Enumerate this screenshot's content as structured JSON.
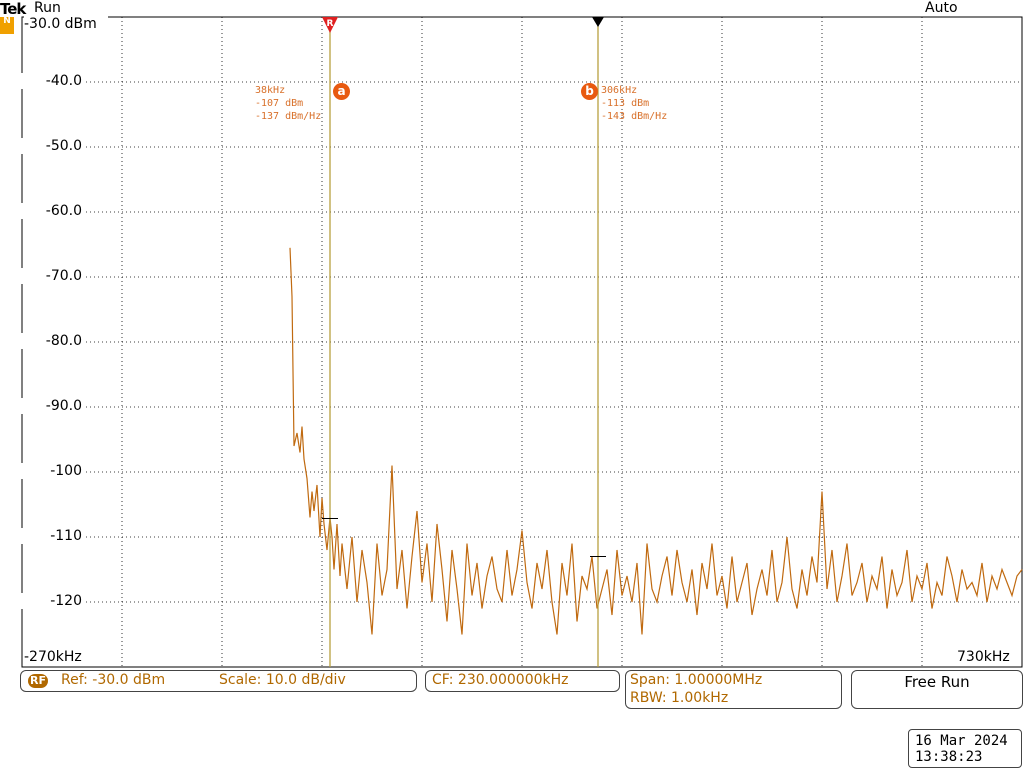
{
  "header": {
    "brand": "Tek",
    "run_state": "Run",
    "trigger_mode": "Auto",
    "channel_badge": "N"
  },
  "y_axis": {
    "labels": [
      "-30.0 dBm",
      "-40.0",
      "-50.0",
      "-60.0",
      "-70.0",
      "-80.0",
      "-90.0",
      "-100",
      "-110",
      "-120"
    ]
  },
  "x_axis": {
    "start": "-270kHz",
    "end": "730kHz"
  },
  "markers": {
    "a": {
      "label": "a",
      "flag": "R",
      "freq": "38kHz",
      "power": "-107 dBm",
      "density": "-137 dBm/Hz"
    },
    "b": {
      "label": "b",
      "freq": "306kHz",
      "power": "-113 dBm",
      "density": "-143 dBm/Hz"
    }
  },
  "status_bar": {
    "rf_badge": "RF",
    "ref": "Ref: -30.0 dBm",
    "scale": "Scale: 10.0 dB/div",
    "cf": "CF:  230.000000kHz",
    "span": "Span:    1.00000MHz",
    "rbw": "RBW:     1.00kHz",
    "mode": "Free Run"
  },
  "datetime": {
    "date": "16 Mar  2024",
    "time": "13:38:23"
  },
  "colors": {
    "trace": "#c06a10",
    "marker_line": "#b8a040",
    "marker_text": "#d8702a",
    "grid": "#000000"
  },
  "chart_data": {
    "type": "line",
    "xlabel": "",
    "ylabel": "",
    "x_unit": "kHz",
    "y_unit": "dBm",
    "xlim": [
      -270,
      730
    ],
    "ylim": [
      -125,
      -30
    ],
    "grid": true,
    "series": [
      {
        "x": [
          -2,
          0,
          2,
          5,
          8,
          10,
          12,
          15,
          18,
          20,
          22,
          25,
          28,
          30,
          32,
          35,
          38,
          40,
          42,
          45,
          48,
          50,
          55,
          60,
          65,
          70,
          75,
          80,
          85,
          90,
          95,
          100,
          105,
          110,
          115,
          120,
          125,
          130,
          135,
          140,
          145,
          150,
          155,
          160,
          165,
          170,
          175,
          180,
          185,
          190,
          195,
          200,
          205,
          210,
          215,
          220,
          225,
          230,
          235,
          240,
          245,
          250,
          255,
          260,
          265,
          270,
          275,
          280,
          285,
          290,
          295,
          300,
          305,
          310,
          315,
          320,
          325,
          330,
          335,
          340,
          345,
          350,
          355,
          360,
          365,
          370,
          375,
          380,
          385,
          390,
          395,
          400,
          405,
          410,
          415,
          420,
          425,
          430,
          435,
          440,
          445,
          450,
          455,
          460,
          465,
          470,
          475,
          480,
          485,
          490,
          495,
          500,
          505,
          510,
          515,
          520,
          525,
          530,
          535,
          540,
          545,
          550,
          555,
          560,
          565,
          570,
          575,
          580,
          585,
          590,
          595,
          600,
          605,
          610,
          615,
          620,
          625,
          630,
          635,
          640,
          645,
          650,
          655,
          660,
          665,
          670,
          675,
          680,
          685,
          690,
          695,
          700,
          705,
          710,
          715,
          720,
          725,
          730
        ],
        "y": [
          -65.5,
          -73,
          -96,
          -94,
          -97,
          -93,
          -98,
          -101,
          -107,
          -103,
          -106,
          -102,
          -110,
          -104,
          -108,
          -112,
          -107,
          -110,
          -115,
          -108,
          -116,
          -111,
          -118,
          -110,
          -120,
          -112,
          -117,
          -125,
          -111,
          -119,
          -115,
          -99,
          -118,
          -112,
          -121,
          -113,
          -106,
          -117,
          -111,
          -120,
          -108,
          -115,
          -123,
          -112,
          -118,
          -125,
          -111,
          -119,
          -114,
          -121,
          -116,
          -113,
          -118,
          -120,
          -112,
          -119,
          -115,
          -109,
          -117,
          -121,
          -114,
          -118,
          -112,
          -120,
          -128,
          -114,
          -119,
          -111,
          -123,
          -116,
          -118,
          -113,
          -121,
          -118,
          -115,
          -122,
          -112,
          -119,
          -116,
          -120,
          -114,
          -125,
          -111,
          -118,
          -120,
          -116,
          -113,
          -119,
          -112,
          -117,
          -120,
          -115,
          -122,
          -114,
          -118,
          -111,
          -119,
          -116,
          -121,
          -113,
          -120,
          -117,
          -114,
          -122,
          -118,
          -115,
          -119,
          -112,
          -120,
          -117,
          -110,
          -118,
          -121,
          -115,
          -119,
          -113,
          -117,
          -103,
          -118,
          -112,
          -120,
          -116,
          -111,
          -119,
          -117,
          -114,
          -120,
          -116,
          -118,
          -113,
          -121,
          -115,
          -119,
          -117,
          -112,
          -120,
          -116,
          -118,
          -114,
          -121,
          -117,
          -119,
          -113,
          -116,
          -120,
          -115,
          -118,
          -117,
          -119,
          -114,
          -120,
          -116,
          -118,
          -115,
          -117,
          -119,
          -116,
          -115
        ]
      }
    ]
  }
}
